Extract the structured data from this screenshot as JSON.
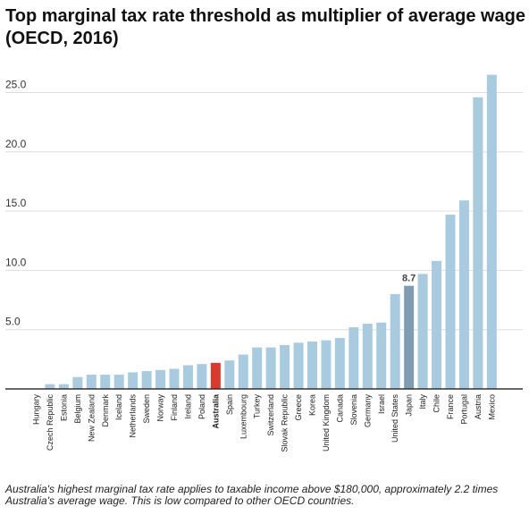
{
  "title": "Top marginal tax rate threshold as multiplier of average wage (OECD, 2016)",
  "footnote": "Australia's highest marginal tax rate applies to taxable income above $180,000, approximately 2.2 times Australia's average wage. This is low compared to other OECD countries.",
  "colors": {
    "bar": "#a9cbe0",
    "highlight": "#d93a2b",
    "japan": "#7e9db2",
    "grid": "#dddddd",
    "axis": "#333333"
  },
  "chart_data": {
    "type": "bar",
    "categories": [
      "Hungary",
      "Czech Republic",
      "Estonia",
      "Belgium",
      "New Zealand",
      "Denmark",
      "Iceland",
      "Netherlands",
      "Sweden",
      "Norway",
      "Finland",
      "Ireland",
      "Poland",
      "Australia",
      "Spain",
      "Luxembourg",
      "Turkey",
      "Switzerland",
      "Slovak Republic",
      "Greece",
      "Korea",
      "United Kingdom",
      "Canada",
      "Slovenia",
      "Germany",
      "Israel",
      "United States",
      "Japan",
      "Italy",
      "Chile",
      "France",
      "Portugal",
      "Austria",
      "Mexico"
    ],
    "values": [
      0,
      0.4,
      0.4,
      1.0,
      1.2,
      1.2,
      1.2,
      1.4,
      1.5,
      1.6,
      1.7,
      2.0,
      2.1,
      2.2,
      2.4,
      2.9,
      3.5,
      3.5,
      3.7,
      3.9,
      4.0,
      4.1,
      4.3,
      5.2,
      5.5,
      5.6,
      8.0,
      8.7,
      9.7,
      10.8,
      14.7,
      15.9,
      24.6,
      26.5
    ],
    "highlight": "Australia",
    "emphasis": "Japan",
    "data_labels": [
      {
        "category": "Japan",
        "text": "8.7"
      }
    ],
    "yticks": [
      "5.0",
      "10.0",
      "15.0",
      "20.0",
      "25.0"
    ],
    "ylim": [
      0,
      27
    ],
    "grid": true,
    "xlabel": "",
    "ylabel": ""
  }
}
